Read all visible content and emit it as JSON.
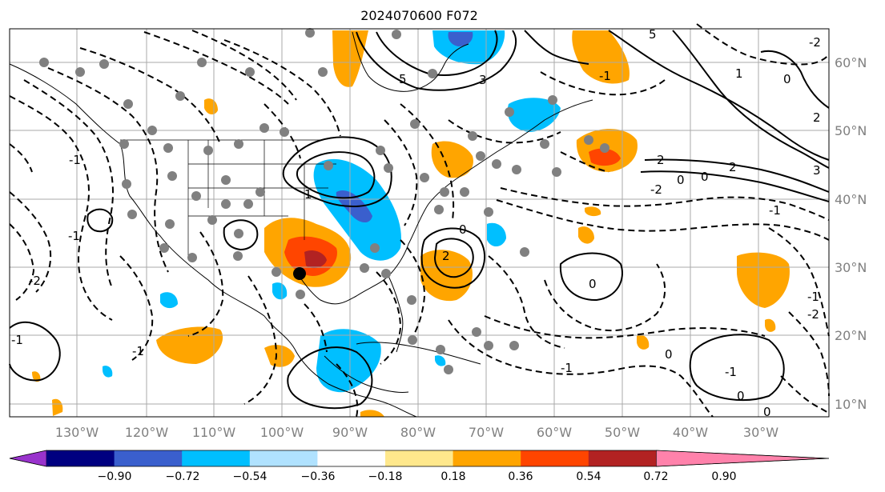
{
  "title": "2024070600 F072",
  "map": {
    "lon_labels": [
      "130°W",
      "120°W",
      "110°W",
      "100°W",
      "90°W",
      "80°W",
      "70°W",
      "60°W",
      "50°W",
      "40°W",
      "30°W"
    ],
    "lat_labels": [
      "60°N",
      "50°N",
      "40°N",
      "30°N",
      "20°N",
      "10°N"
    ],
    "contour_labels": [
      "5",
      "5",
      "3",
      "2",
      "0",
      "1",
      "2",
      "-1",
      "-2",
      "-1",
      "0",
      "2",
      "0",
      "-1",
      "-2",
      "0",
      "-1",
      "-1",
      "0",
      "-2",
      "-1",
      "0",
      "3",
      "2",
      "1",
      "0",
      "-1",
      "-2",
      "-1",
      "0",
      "-1"
    ]
  },
  "colorbar": {
    "ticks": [
      "−0.90",
      "−0.72",
      "−0.54",
      "−0.36",
      "−0.18",
      "0.18",
      "0.36",
      "0.54",
      "0.72",
      "0.90"
    ],
    "colors": [
      "#9933cc",
      "#000080",
      "#3a5fcd",
      "#00bfff",
      "#b0e2ff",
      "#ffffff",
      "#ffe88c",
      "#ffa500",
      "#ff4500",
      "#b22222",
      "#ff82ab"
    ]
  }
}
